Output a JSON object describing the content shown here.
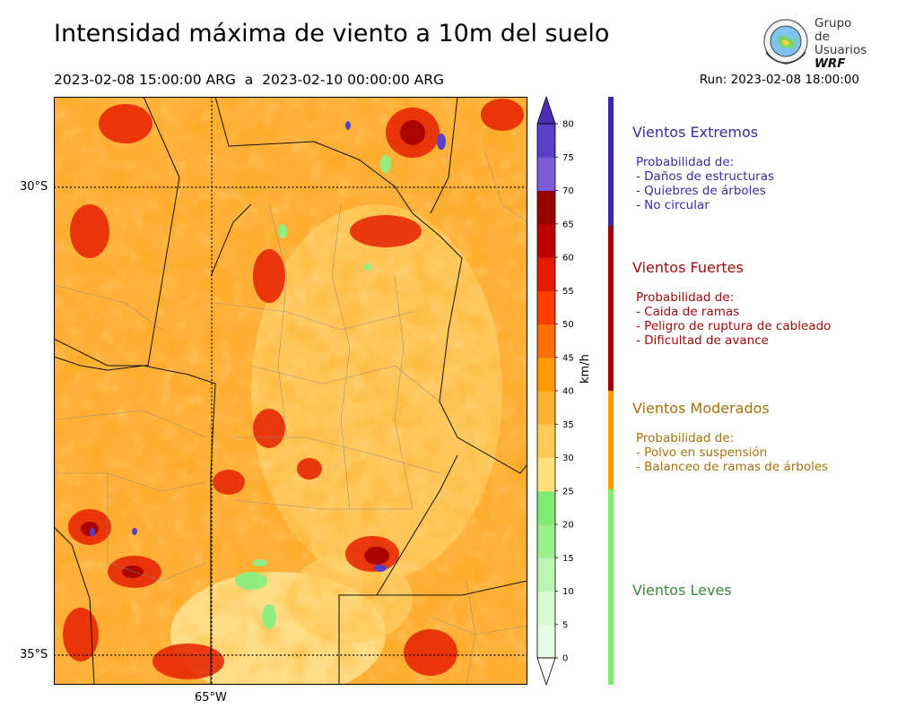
{
  "header": {
    "title": "Intensidad máxima de viento a 10m del suelo",
    "period": "2023-02-08 15:00:00 ARG  a  2023-02-10 00:00:00 ARG",
    "run": "Run: 2023-02-08 18:00:00"
  },
  "logo": {
    "line1": "Grupo de",
    "line2": "Usuarios",
    "line3": "WRF"
  },
  "map": {
    "lat_labels": [
      "30°S",
      "35°S"
    ],
    "lon_labels": [
      "65°W"
    ],
    "wind_max_kmh": 80
  },
  "colorbar": {
    "unit": "km/h",
    "ticks": [
      "0",
      "5",
      "10",
      "15",
      "20",
      "25",
      "30",
      "35",
      "40",
      "45",
      "50",
      "55",
      "60",
      "65",
      "70",
      "75",
      "80"
    ],
    "colors": [
      "#e8fde6",
      "#d6fbd1",
      "#bbf6b4",
      "#9bf08e",
      "#80ea73",
      "#ffe07a",
      "#ffcb55",
      "#ffb133",
      "#ff9900",
      "#ff6e00",
      "#ff3d00",
      "#e61a00",
      "#c00000",
      "#9a0000",
      "#7a5bd8",
      "#5a3fc8",
      "#4a2fb5"
    ],
    "extend_low": "#ffffff",
    "extend_high": "#4a2fb5"
  },
  "categories": [
    {
      "title": "Vientos Extremos",
      "color": "#3b2aa0",
      "head": "Probabilidad de:",
      "items": [
        "- Daños de estructuras",
        "- Quiebres de árboles",
        "- No circular"
      ]
    },
    {
      "title": "Vientos Fuertes",
      "color": "#9b0a0a",
      "head": "Probabilidad de:",
      "items": [
        "- Caida de ramas",
        "- Peligro de ruptura de cableado",
        "- Dificultad de avance"
      ]
    },
    {
      "title": "Vientos Moderados",
      "color": "#a6700b",
      "head": "Probabilidad de:",
      "items": [
        "- Polvo en suspensión",
        "- Balanceo de ramas de árboles"
      ]
    },
    {
      "title": "Vientos Leves",
      "color": "#3a8a3a"
    }
  ],
  "bar_colors": {
    "extreme": "#3b2aa8",
    "strong": "#9b0000",
    "moderate": "#ff9900",
    "light": "#78f06a"
  }
}
